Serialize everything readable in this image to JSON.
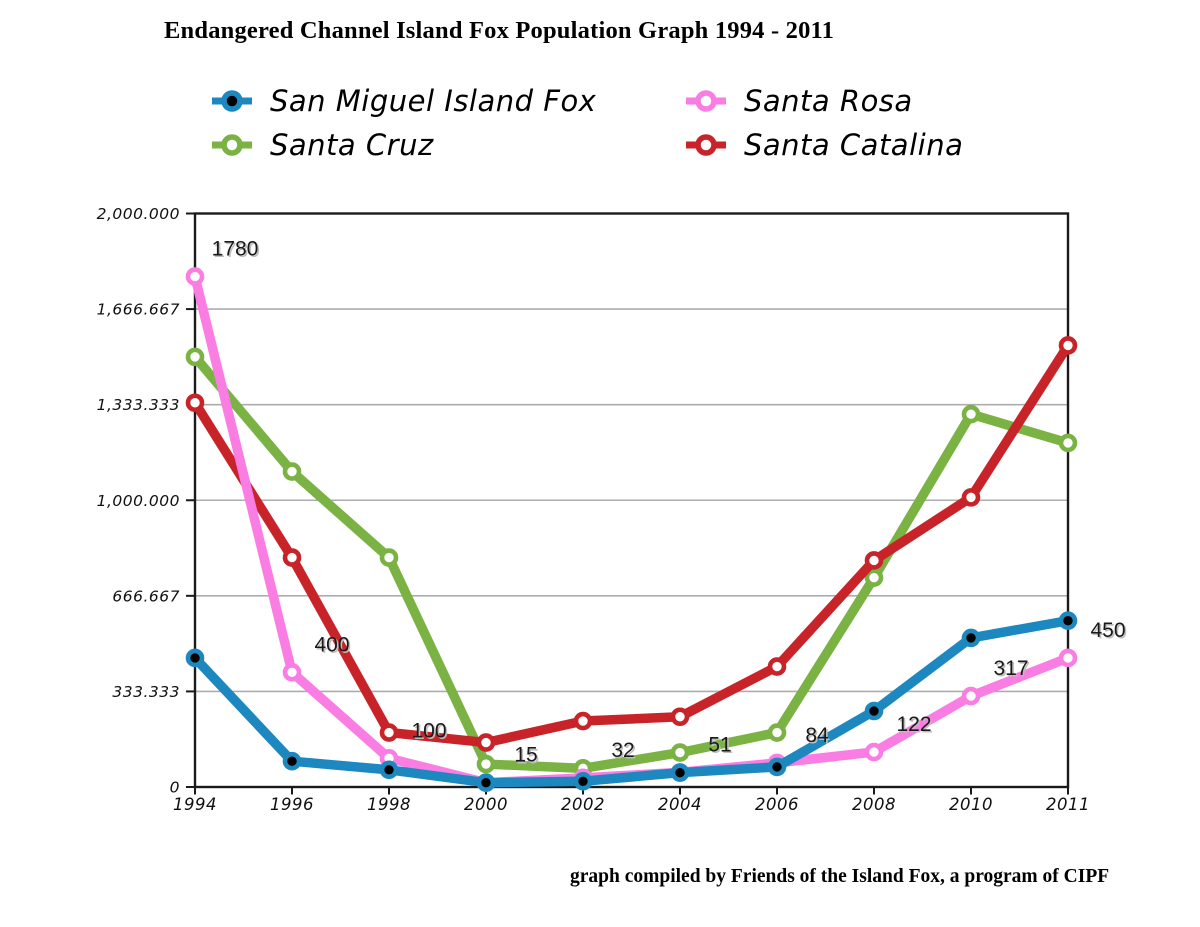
{
  "page": {
    "title": "Endangered Channel Island Fox Population Graph 1994 - 2011",
    "caption": "graph compiled by Friends of the Island Fox, a program of CIPF"
  },
  "chart_data": {
    "type": "line",
    "title": "Endangered Channel Island Fox Population Graph 1994 - 2011",
    "categories": [
      "1994",
      "1996",
      "1998",
      "2000",
      "2002",
      "2004",
      "2006",
      "2008",
      "2010",
      "2011"
    ],
    "series": [
      {
        "name": "San Miguel Island Fox",
        "color": "#1D88BF",
        "marker_fill": "#000000",
        "values": [
          450,
          90,
          60,
          15,
          20,
          50,
          70,
          265,
          520,
          580
        ]
      },
      {
        "name": "Santa Cruz",
        "color": "#7AB243",
        "marker_fill": "#FFFFFF",
        "values": [
          1500,
          1100,
          800,
          80,
          65,
          120,
          190,
          730,
          1300,
          1200
        ]
      },
      {
        "name": "Santa Rosa",
        "color": "#F97DE2",
        "marker_fill": "#FFFFFF",
        "values": [
          1780,
          400,
          100,
          15,
          32,
          51,
          84,
          122,
          317,
          450
        ]
      },
      {
        "name": "Santa Catalina",
        "color": "#C9232A",
        "marker_fill": "#FFFFFF",
        "values": [
          1340,
          800,
          190,
          155,
          230,
          245,
          420,
          790,
          1010,
          1540
        ]
      }
    ],
    "annotations": [
      {
        "label": "1780",
        "series": "Santa Rosa",
        "category": "1994"
      },
      {
        "label": "400",
        "series": "Santa Rosa",
        "category": "1996"
      },
      {
        "label": "100",
        "series": "Santa Rosa",
        "category": "1998"
      },
      {
        "label": "15",
        "series": "Santa Rosa",
        "category": "2000"
      },
      {
        "label": "32",
        "series": "Santa Rosa",
        "category": "2002"
      },
      {
        "label": "51",
        "series": "Santa Rosa",
        "category": "2004"
      },
      {
        "label": "84",
        "series": "Santa Rosa",
        "category": "2006"
      },
      {
        "label": "122",
        "series": "Santa Rosa",
        "category": "2008"
      },
      {
        "label": "317",
        "series": "Santa Rosa",
        "category": "2010"
      },
      {
        "label": "450",
        "series": "Santa Rosa",
        "category": "2011"
      }
    ],
    "y_axis": {
      "ticks": [
        {
          "label": "2,000.000",
          "value": 2000
        },
        {
          "label": "1,666.667",
          "value": 1666.667
        },
        {
          "label": "1,333.333",
          "value": 1333.333
        },
        {
          "label": "1,000.000",
          "value": 1000
        },
        {
          "label": "666.667",
          "value": 666.667
        },
        {
          "label": "333.333",
          "value": 333.333
        },
        {
          "label": "0",
          "value": 0
        }
      ],
      "range": [
        0,
        2000
      ]
    },
    "x_axis": {
      "ticks": [
        "1994",
        "1996",
        "1998",
        "2000",
        "2002",
        "2004",
        "2006",
        "2008",
        "2010",
        "2011"
      ]
    },
    "grid": true,
    "legend_position": "top",
    "draw_order": [
      "Santa Cruz",
      "Santa Catalina",
      "Santa Rosa",
      "San Miguel Island Fox"
    ]
  }
}
